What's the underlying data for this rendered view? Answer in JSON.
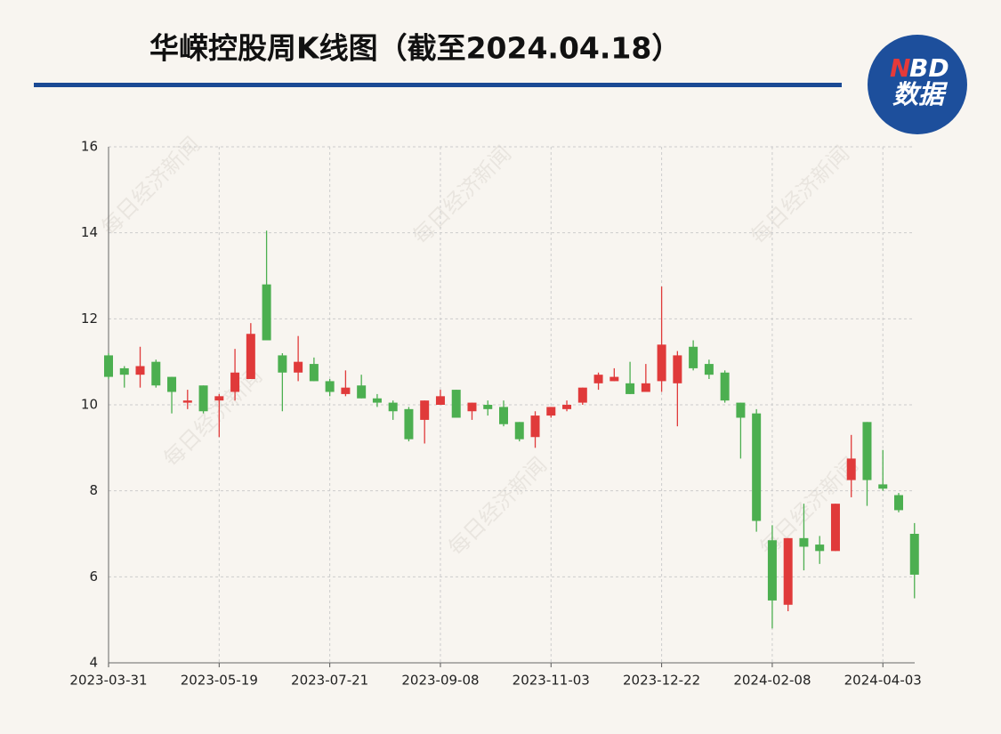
{
  "chart_data": {
    "type": "candlestick",
    "title": "华嵘控股周K线图（截至2024.04.18）",
    "logo": {
      "brand_n": "N",
      "brand_bd": "BD",
      "sub": "数据"
    },
    "watermark": "每日经济新闻",
    "up_color": "#e03a3a",
    "down_color": "#4caf50",
    "categories": [
      "2023-03-31",
      null,
      null,
      null,
      null,
      null,
      null,
      "2023-05-19",
      null,
      null,
      null,
      null,
      null,
      null,
      "2023-07-21",
      null,
      null,
      null,
      null,
      null,
      null,
      "2023-09-08",
      null,
      null,
      null,
      null,
      null,
      null,
      "2023-11-03",
      null,
      null,
      null,
      null,
      null,
      null,
      "2023-12-22",
      null,
      null,
      null,
      null,
      null,
      null,
      "2024-02-08",
      null,
      null,
      null,
      null,
      null,
      null,
      "2024-04-03",
      null,
      null
    ],
    "open": [
      11.15,
      10.85,
      10.7,
      11.0,
      10.65,
      10.05,
      10.45,
      10.1,
      10.3,
      10.6,
      12.8,
      11.15,
      10.75,
      10.95,
      10.55,
      10.25,
      10.45,
      10.15,
      10.05,
      9.9,
      9.65,
      10.0,
      10.35,
      9.85,
      10.0,
      9.95,
      9.6,
      9.25,
      9.75,
      9.9,
      10.05,
      10.5,
      10.55,
      10.5,
      10.3,
      10.55,
      10.5,
      11.35,
      10.95,
      10.75,
      10.05,
      9.8,
      6.85,
      5.35,
      6.9,
      6.75,
      6.6,
      8.25,
      9.6,
      8.15,
      7.9,
      7.0
    ],
    "high": [
      11.2,
      10.9,
      11.35,
      11.05,
      10.65,
      10.35,
      10.45,
      10.25,
      11.3,
      11.9,
      14.05,
      11.2,
      11.6,
      11.1,
      10.6,
      10.8,
      10.7,
      10.25,
      10.1,
      9.95,
      10.1,
      10.35,
      10.35,
      10.05,
      10.1,
      10.1,
      9.6,
      9.85,
      9.95,
      10.1,
      10.4,
      10.75,
      10.85,
      11.0,
      10.95,
      12.75,
      11.25,
      11.5,
      11.05,
      10.8,
      10.05,
      9.9,
      7.2,
      6.9,
      7.7,
      6.95,
      7.7,
      9.3,
      9.6,
      8.95,
      7.95,
      7.25
    ],
    "low": [
      10.6,
      10.4,
      10.4,
      10.4,
      9.8,
      9.9,
      9.8,
      9.25,
      10.1,
      10.6,
      11.5,
      9.85,
      10.55,
      10.55,
      10.2,
      10.2,
      10.15,
      9.95,
      9.65,
      9.15,
      9.1,
      10.0,
      9.7,
      9.65,
      9.75,
      9.5,
      9.15,
      9.0,
      9.7,
      9.85,
      10.0,
      10.35,
      10.55,
      10.25,
      10.3,
      10.3,
      9.5,
      10.8,
      10.6,
      10.05,
      8.75,
      7.05,
      4.8,
      5.2,
      6.15,
      6.3,
      6.6,
      7.85,
      7.65,
      8.0,
      7.5,
      5.5
    ],
    "close": [
      10.65,
      10.7,
      10.9,
      10.45,
      10.3,
      10.1,
      9.85,
      10.2,
      10.75,
      11.65,
      11.5,
      10.75,
      11.0,
      10.55,
      10.3,
      10.4,
      10.15,
      10.05,
      9.85,
      9.2,
      10.1,
      10.2,
      9.7,
      10.05,
      9.9,
      9.55,
      9.2,
      9.75,
      9.95,
      10.0,
      10.4,
      10.7,
      10.65,
      10.25,
      10.5,
      11.4,
      11.15,
      10.85,
      10.7,
      10.1,
      9.7,
      7.3,
      5.45,
      6.9,
      6.7,
      6.6,
      7.7,
      8.75,
      8.25,
      8.05,
      7.55,
      6.05
    ],
    "ylim": [
      4,
      16
    ],
    "yticks": [
      4,
      6,
      8,
      10,
      12,
      14,
      16
    ],
    "grid": true
  }
}
